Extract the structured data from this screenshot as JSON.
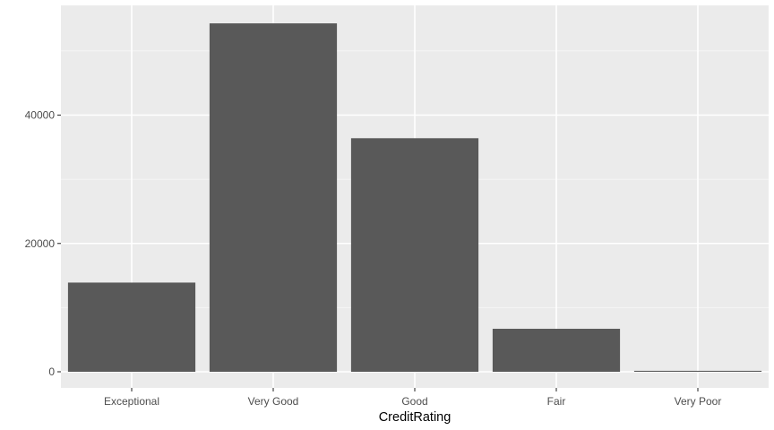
{
  "chart_data": {
    "type": "bar",
    "title": "",
    "xlabel": "CreditRating",
    "ylabel": "",
    "categories": [
      "Exceptional",
      "Very Good",
      "Good",
      "Fair",
      "Very Poor"
    ],
    "values": [
      13900,
      54300,
      36400,
      6700,
      150
    ],
    "ylim": [
      0,
      57000
    ],
    "y_ticks": [
      0,
      20000,
      40000
    ],
    "y_tick_labels": [
      "0",
      "20000",
      "40000"
    ],
    "grid": true,
    "legend": "none",
    "colors": {
      "bar": "#595959",
      "panel": "#ebebeb",
      "grid_major": "#ffffff",
      "grid_minor": "#f5f5f5",
      "tick": "#333333"
    }
  }
}
